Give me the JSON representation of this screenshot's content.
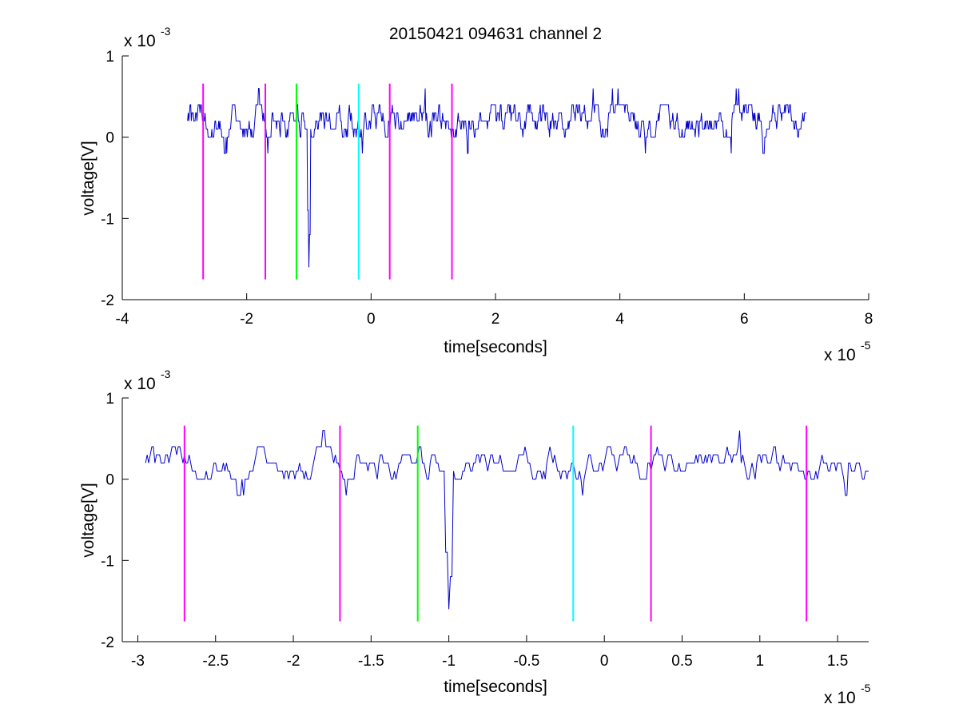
{
  "window": {
    "title": "20150421 094631 channel 2"
  },
  "chart_data": [
    {
      "type": "line",
      "title": "20150421 094631 channel 2",
      "xlabel": "time[seconds]",
      "ylabel": "voltage[V]",
      "x_multiplier_label": "x 10",
      "x_multiplier_exp": "-5",
      "y_multiplier_label": "x 10",
      "y_multiplier_exp": "-3",
      "xlim": [
        -4e-05,
        8e-05
      ],
      "ylim": [
        -0.002,
        0.001
      ],
      "xticks": [
        -4e-05,
        -2e-05,
        0,
        2e-05,
        4e-05,
        6e-05,
        8e-05
      ],
      "xtick_labels": [
        "-4",
        "-2",
        "0",
        "2",
        "4",
        "6",
        "8"
      ],
      "yticks": [
        -0.002,
        -0.001,
        0,
        0.001
      ],
      "ytick_labels": [
        "-2",
        "-1",
        "0",
        "1"
      ],
      "grid": false,
      "signal": {
        "name": "",
        "color": "#0000cc",
        "x_start": -2.95e-05,
        "x_end": 7e-05,
        "spike": {
          "x": -1e-05,
          "y": -0.0016
        },
        "baseline_levels": [
          -0.0002,
          0,
          0.0001,
          0.0002,
          0.0003,
          0.0004,
          0.0006
        ]
      },
      "markers": [
        {
          "x": -2.7e-05,
          "color": "#ff00ff",
          "y_from": -0.00175,
          "y_to": 0.00066
        },
        {
          "x": -1.7e-05,
          "color": "#ff00ff",
          "y_from": -0.00175,
          "y_to": 0.00066
        },
        {
          "x": -1.2e-05,
          "color": "#00ff00",
          "y_from": -0.00175,
          "y_to": 0.00066
        },
        {
          "x": -2e-06,
          "color": "#00ffff",
          "y_from": -0.00175,
          "y_to": 0.00066
        },
        {
          "x": 3e-06,
          "color": "#ff00ff",
          "y_from": -0.00175,
          "y_to": 0.00066
        },
        {
          "x": 1.3e-05,
          "color": "#ff00ff",
          "y_from": -0.00175,
          "y_to": 0.00066
        }
      ]
    },
    {
      "type": "line",
      "title": "",
      "xlabel": "time[seconds]",
      "ylabel": "voltage[V]",
      "x_multiplier_label": "x 10",
      "x_multiplier_exp": "-5",
      "y_multiplier_label": "x 10",
      "y_multiplier_exp": "-3",
      "xlim": [
        -3.1e-05,
        1.7e-05
      ],
      "ylim": [
        -0.002,
        0.001
      ],
      "xticks": [
        -3e-05,
        -2.5e-05,
        -2e-05,
        -1.5e-05,
        -1e-05,
        -5e-06,
        0,
        5e-06,
        1e-05,
        1.5e-05
      ],
      "xtick_labels": [
        "-3",
        "-2.5",
        "-2",
        "-1.5",
        "-1",
        "-0.5",
        "0",
        "0.5",
        "1",
        "1.5"
      ],
      "yticks": [
        -0.002,
        -0.001,
        0,
        0.001
      ],
      "ytick_labels": [
        "-2",
        "-1",
        "0",
        "1"
      ],
      "grid": false,
      "signal": {
        "name": "",
        "color": "#0000cc",
        "x_start": -2.95e-05,
        "x_end": 1.7e-05,
        "spike": {
          "x": -1e-05,
          "y": -0.0016
        },
        "baseline_levels": [
          -0.0002,
          0,
          0.0001,
          0.0002,
          0.0003,
          0.0004,
          0.0006
        ]
      },
      "markers": [
        {
          "x": -2.7e-05,
          "color": "#ff00ff",
          "y_from": -0.00175,
          "y_to": 0.00066
        },
        {
          "x": -1.7e-05,
          "color": "#ff00ff",
          "y_from": -0.00175,
          "y_to": 0.00066
        },
        {
          "x": -1.2e-05,
          "color": "#00ff00",
          "y_from": -0.00175,
          "y_to": 0.00066
        },
        {
          "x": -2e-06,
          "color": "#00ffff",
          "y_from": -0.00175,
          "y_to": 0.00066
        },
        {
          "x": 3e-06,
          "color": "#ff00ff",
          "y_from": -0.00175,
          "y_to": 0.00066
        },
        {
          "x": 1.3e-05,
          "color": "#ff00ff",
          "y_from": -0.00175,
          "y_to": 0.00066
        }
      ]
    }
  ]
}
